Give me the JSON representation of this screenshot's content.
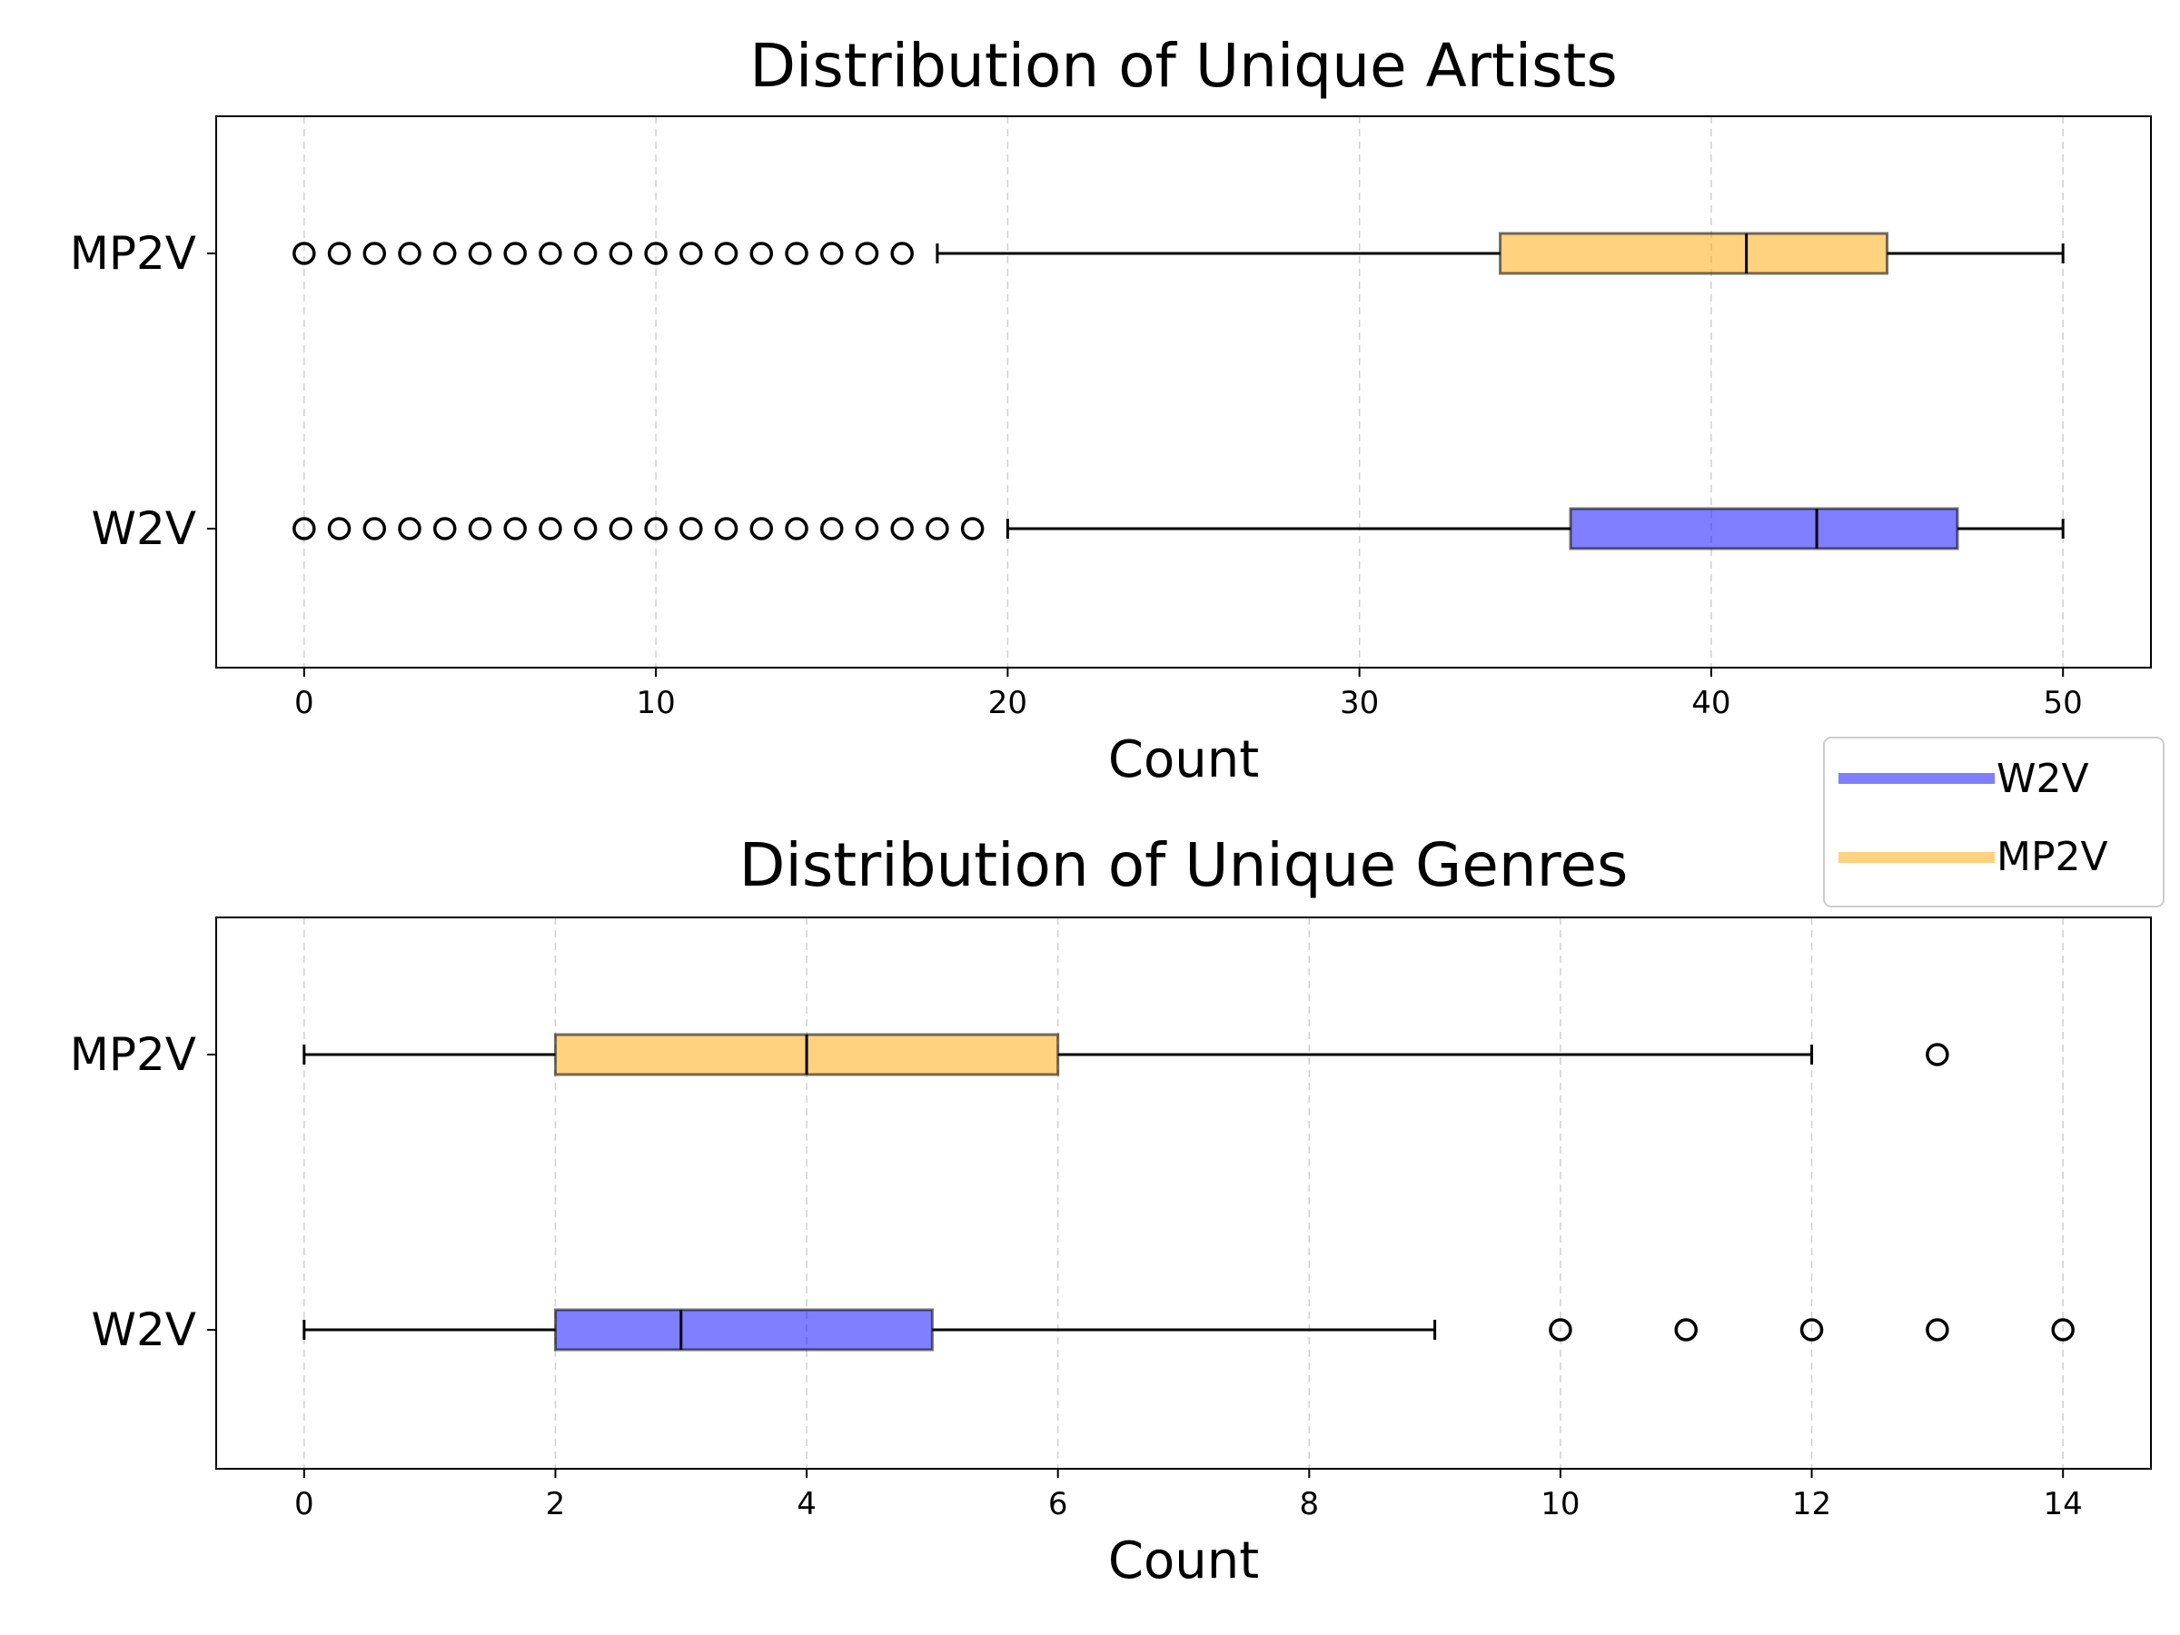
{
  "chart_data": [
    {
      "type": "boxplot",
      "orientation": "horizontal",
      "title": "Distribution of Unique Artists",
      "xlabel": "Count",
      "xlim": [
        -2.5,
        52.5
      ],
      "xticks": [
        0,
        10,
        20,
        30,
        40,
        50
      ],
      "grid": "x, dashed",
      "categories": [
        "W2V",
        "MP2V"
      ],
      "series": [
        {
          "name": "W2V",
          "color": "#0000ff",
          "q1": 36,
          "median": 43,
          "q3": 47,
          "whisker_low": 20,
          "whisker_high": 50,
          "outliers": [
            0,
            1,
            2,
            3,
            4,
            5,
            6,
            7,
            8,
            9,
            10,
            11,
            12,
            13,
            14,
            15,
            16,
            17,
            18,
            19
          ]
        },
        {
          "name": "MP2V",
          "color": "#ffa500",
          "q1": 34,
          "median": 41,
          "q3": 45,
          "whisker_low": 18,
          "whisker_high": 50,
          "outliers": [
            0,
            1,
            2,
            3,
            4,
            5,
            6,
            7,
            8,
            9,
            10,
            11,
            12,
            13,
            14,
            15,
            16,
            17
          ]
        }
      ]
    },
    {
      "type": "boxplot",
      "orientation": "horizontal",
      "title": "Distribution of Unique Genres",
      "xlabel": "Count",
      "xlim": [
        -0.7,
        14.7
      ],
      "xticks": [
        0,
        2,
        4,
        6,
        8,
        10,
        12,
        14
      ],
      "grid": "x, dashed",
      "categories": [
        "W2V",
        "MP2V"
      ],
      "series": [
        {
          "name": "W2V",
          "color": "#0000ff",
          "q1": 2,
          "median": 3,
          "q3": 5,
          "whisker_low": 0,
          "whisker_high": 9,
          "outliers": [
            10,
            11,
            12,
            13,
            14
          ]
        },
        {
          "name": "MP2V",
          "color": "#ffa500",
          "q1": 2,
          "median": 4,
          "q3": 6,
          "whisker_low": 0,
          "whisker_high": 12,
          "outliers": [
            13
          ]
        }
      ]
    }
  ],
  "legend": {
    "placement": "right, between subplots",
    "entries": [
      {
        "label": "W2V",
        "color": "#0000ff"
      },
      {
        "label": "MP2V",
        "color": "#ffa500"
      }
    ]
  }
}
